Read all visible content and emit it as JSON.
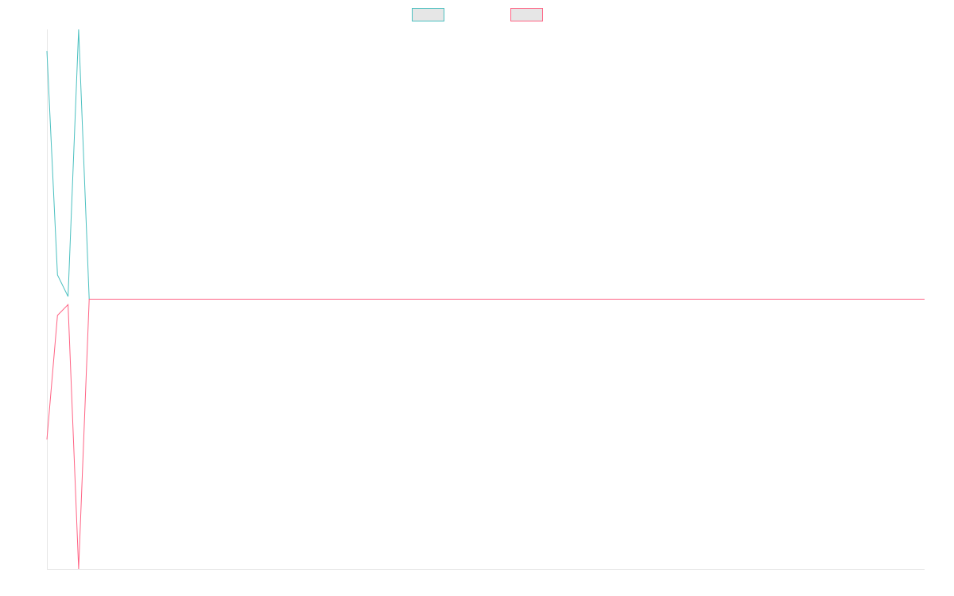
{
  "chart_data": {
    "type": "line",
    "categories": [
      null,
      null,
      null,
      null,
      null,
      null,
      null,
      null,
      null,
      null,
      null,
      null,
      null,
      null,
      null,
      null,
      null,
      null,
      null,
      null,
      null,
      null,
      null,
      null,
      null,
      null,
      null,
      null,
      null,
      null,
      null,
      null,
      null,
      null,
      null,
      null,
      null,
      null,
      null,
      null,
      null,
      null,
      null,
      null,
      null,
      null,
      null,
      null,
      null,
      null,
      null,
      null,
      null,
      null,
      null,
      null,
      null,
      null,
      null,
      null,
      null,
      null,
      null,
      null,
      null,
      null,
      null,
      null,
      null,
      null,
      null,
      null,
      null,
      null,
      null,
      null,
      null,
      null,
      null,
      null,
      null,
      null,
      null,
      null
    ],
    "series": [
      {
        "color": "#4bc0c0",
        "values": [
          0.92,
          0.09,
          0.01,
          1,
          0,
          0,
          0,
          0,
          0,
          0,
          0,
          0,
          0,
          0,
          0,
          0,
          0,
          0,
          0,
          0,
          0,
          0,
          0,
          0,
          0,
          0,
          0,
          0,
          0,
          0,
          0,
          0,
          0,
          0,
          0,
          0,
          0,
          0,
          0,
          0,
          0,
          0,
          0,
          0,
          0,
          0,
          0,
          0,
          0,
          0,
          0,
          0,
          0,
          0,
          0,
          0,
          0,
          0,
          0,
          0,
          0,
          0,
          0,
          0,
          0,
          0,
          0,
          0,
          0,
          0,
          0,
          0,
          0,
          0,
          0,
          0,
          0,
          0,
          0,
          0,
          0,
          0,
          0,
          0
        ]
      },
      {
        "color": "#ff6384",
        "values": [
          -0.52,
          -0.06,
          -0.02,
          -1,
          0,
          0,
          0,
          0,
          0,
          0,
          0,
          0,
          0,
          0,
          0,
          0,
          0,
          0,
          0,
          0,
          0,
          0,
          0,
          0,
          0,
          0,
          0,
          0,
          0,
          0,
          0,
          0,
          0,
          0,
          0,
          0,
          0,
          0,
          0,
          0,
          0,
          0,
          0,
          0,
          0,
          0,
          0,
          0,
          0,
          0,
          0,
          0,
          0,
          0,
          0,
          0,
          0,
          0,
          0,
          0,
          0,
          0,
          0,
          0,
          0,
          0,
          0,
          0,
          0,
          0,
          0,
          0,
          0,
          0,
          0,
          0,
          0,
          0,
          0,
          0,
          0,
          0,
          0,
          0
        ]
      }
    ],
    "ylim": [
      -1,
      1
    ],
    "legend": "top"
  }
}
